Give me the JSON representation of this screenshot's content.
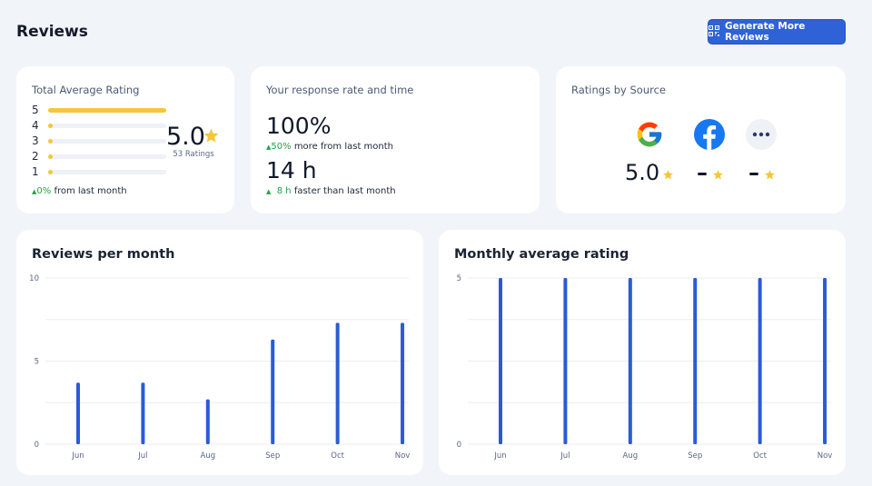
{
  "header": {
    "title": "Reviews",
    "generate_button": "Generate More Reviews"
  },
  "rating_card": {
    "title": "Total Average Rating",
    "rows": [
      {
        "label": "5",
        "fill": 1.0
      },
      {
        "label": "4",
        "fill": 0.0
      },
      {
        "label": "3",
        "fill": 0.0
      },
      {
        "label": "2",
        "fill": 0.0
      },
      {
        "label": "1",
        "fill": 0.0
      }
    ],
    "average": "5.0",
    "count_text": "53 Ratings",
    "delta_value": "0%",
    "delta_text": "from last month"
  },
  "response_card": {
    "title": "Your response rate and time",
    "rate": "100%",
    "rate_delta": "50%",
    "rate_delta_text": "more from last month",
    "time": "14 h",
    "time_delta": "8 h",
    "time_delta_text": "faster than last month"
  },
  "sources_card": {
    "title": "Ratings by Source",
    "sources": [
      {
        "icon": "google-icon",
        "value": "5.0"
      },
      {
        "icon": "facebook-icon",
        "value": "–"
      },
      {
        "icon": "more-icon",
        "value": "–"
      }
    ]
  },
  "colors": {
    "accent": "#2f62d6",
    "star": "#f5c63c",
    "positive": "#22a34a",
    "bar": "#2a5bd7"
  },
  "chart_data": [
    {
      "type": "bar",
      "title": "Reviews per month",
      "categories": [
        "Jun",
        "Jul",
        "Aug",
        "Sep",
        "Oct",
        "Nov"
      ],
      "values": [
        3.7,
        3.7,
        2.7,
        6.3,
        7.3,
        7.3
      ],
      "ylim": [
        0,
        10
      ],
      "yticks": [
        "0",
        "5",
        "10"
      ],
      "grid": true
    },
    {
      "type": "bar",
      "title": "Monthly average rating",
      "categories": [
        "Jun",
        "Jul",
        "Aug",
        "Sep",
        "Oct",
        "Nov"
      ],
      "values": [
        5,
        5,
        5,
        5,
        5,
        5
      ],
      "ylim": [
        0,
        5
      ],
      "yticks": [
        "0",
        "5"
      ],
      "grid": true
    }
  ]
}
